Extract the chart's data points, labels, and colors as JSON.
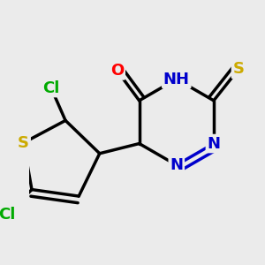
{
  "bg_color": "#ebebeb",
  "bond_color": "#000000",
  "bond_width": 2.5,
  "atom_colors": {
    "C": "#000000",
    "N": "#0000cc",
    "O": "#ff0000",
    "S": "#ccaa00",
    "Cl": "#00aa00",
    "H": "#555555"
  },
  "font_size": 13,
  "fig_size": [
    3.0,
    3.0
  ],
  "dpi": 100
}
